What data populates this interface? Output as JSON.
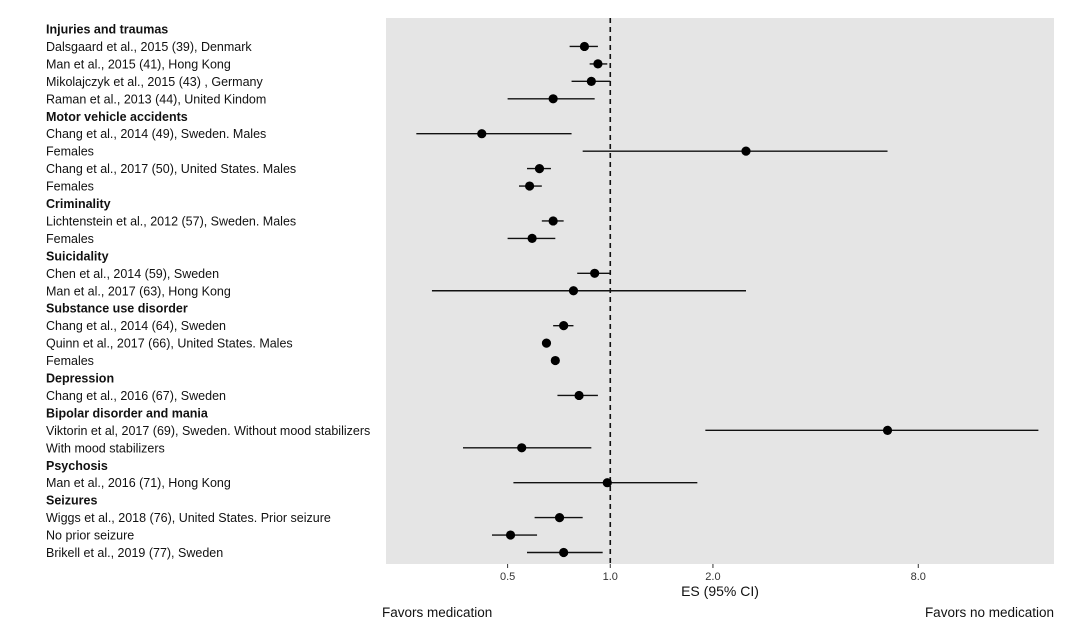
{
  "chart_data": {
    "type": "forest",
    "scale": "log",
    "xlabel": "ES (95% CI)",
    "xticks": [
      0.5,
      1.0,
      2.0,
      8.0
    ],
    "xtick_labels": [
      "0.5",
      "1.0",
      "2.0",
      "8.0"
    ],
    "xlim": [
      0.22,
      20
    ],
    "reference_line": 1.0,
    "left_note": "Favors medication",
    "right_note": "Favors no medication",
    "rows": [
      {
        "label": "Injuries and traumas",
        "header": true
      },
      {
        "label": "Dalsgaard et al., 2015 (39), Denmark",
        "es": 0.84,
        "lo": 0.76,
        "hi": 0.92
      },
      {
        "label": "Man et al., 2015 (41), Hong Kong",
        "es": 0.92,
        "lo": 0.87,
        "hi": 0.98
      },
      {
        "label": "Mikolajczyk et al., 2015 (43) , Germany",
        "es": 0.88,
        "lo": 0.77,
        "hi": 1.0
      },
      {
        "label": "Raman et al., 2013 (44), United Kindom",
        "es": 0.68,
        "lo": 0.5,
        "hi": 0.9
      },
      {
        "label": "Motor vehicle accidents",
        "header": true
      },
      {
        "label": "Chang et al., 2014 (49), Sweden. Males",
        "es": 0.42,
        "lo": 0.27,
        "hi": 0.77
      },
      {
        "label": "Females",
        "es": 2.5,
        "lo": 0.83,
        "hi": 6.5
      },
      {
        "label": "Chang et al., 2017 (50), United States. Males",
        "es": 0.62,
        "lo": 0.57,
        "hi": 0.67
      },
      {
        "label": "Females",
        "es": 0.58,
        "lo": 0.54,
        "hi": 0.63
      },
      {
        "label": "Criminality",
        "header": true
      },
      {
        "label": "Lichtenstein et al., 2012 (57), Sweden. Males",
        "es": 0.68,
        "lo": 0.63,
        "hi": 0.73
      },
      {
        "label": "Females",
        "es": 0.59,
        "lo": 0.5,
        "hi": 0.69
      },
      {
        "label": "Suicidality",
        "header": true
      },
      {
        "label": "Chen et al., 2014 (59), Sweden",
        "es": 0.9,
        "lo": 0.8,
        "hi": 1.0
      },
      {
        "label": "Man et al., 2017 (63), Hong Kong",
        "es": 0.78,
        "lo": 0.3,
        "hi": 2.5
      },
      {
        "label": "Substance use disorder",
        "header": true
      },
      {
        "label": "Chang et al., 2014 (64), Sweden",
        "es": 0.73,
        "lo": 0.68,
        "hi": 0.78
      },
      {
        "label": "Quinn et al., 2017 (66), United States. Males",
        "es": 0.65,
        "lo": 0.64,
        "hi": 0.66
      },
      {
        "label": "Females",
        "es": 0.69,
        "lo": 0.68,
        "hi": 0.7
      },
      {
        "label": "Depression",
        "header": true
      },
      {
        "label": "Chang et al., 2016 (67), Sweden",
        "es": 0.81,
        "lo": 0.7,
        "hi": 0.92
      },
      {
        "label": "Bipolar disorder and mania",
        "header": true
      },
      {
        "label": "Viktorin et al, 2017 (69), Sweden. Without mood stabilizers",
        "es": 6.5,
        "lo": 1.9,
        "hi": 18.0
      },
      {
        "label": "With mood stabilizers",
        "es": 0.55,
        "lo": 0.37,
        "hi": 0.88
      },
      {
        "label": "Psychosis",
        "header": true
      },
      {
        "label": "Man et al., 2016 (71), Hong Kong",
        "es": 0.98,
        "lo": 0.52,
        "hi": 1.8
      },
      {
        "label": "Seizures",
        "header": true
      },
      {
        "label": "Wiggs et al., 2018 (76), United States. Prior seizure",
        "es": 0.71,
        "lo": 0.6,
        "hi": 0.83
      },
      {
        "label": "No prior seizure",
        "es": 0.51,
        "lo": 0.45,
        "hi": 0.61
      },
      {
        "label": "Brikell et al., 2019 (77), Sweden",
        "es": 0.73,
        "lo": 0.57,
        "hi": 0.95
      }
    ]
  }
}
